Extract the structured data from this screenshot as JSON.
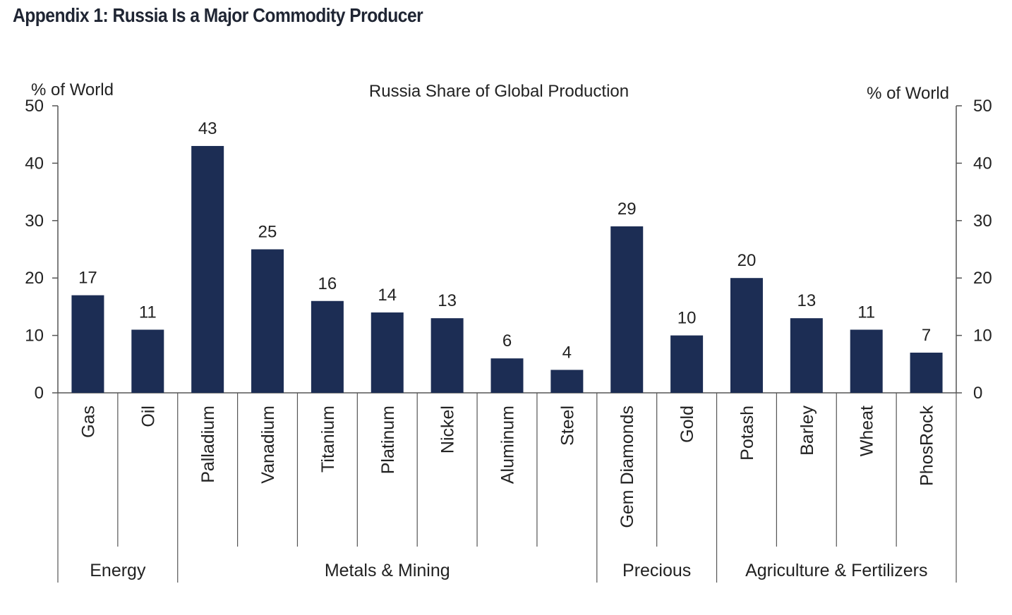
{
  "page": {
    "title": "Appendix 1: Russia Is a Major Commodity Producer"
  },
  "chart_data": {
    "type": "bar",
    "title": "Russia Share of Global Production",
    "ylabel_left": "% of World",
    "ylabel_right": "% of World",
    "ylim": [
      0,
      50
    ],
    "yticks": [
      0,
      10,
      20,
      30,
      40,
      50
    ],
    "categories": [
      "Gas",
      "Oil",
      "Palladium",
      "Vanadium",
      "Titanium",
      "Platinum",
      "Nickel",
      "Aluminum",
      "Steel",
      "Gem Diamonds",
      "Gold",
      "Potash",
      "Barley",
      "Wheat",
      "PhosRock"
    ],
    "values": [
      17,
      11,
      43,
      25,
      16,
      14,
      13,
      6,
      4,
      29,
      10,
      20,
      13,
      11,
      7
    ],
    "data_labels": [
      "17",
      "11",
      "43",
      "25",
      "16",
      "14",
      "13",
      "6",
      "4",
      "29",
      "10",
      "20",
      "13",
      "11",
      "7"
    ],
    "groups": [
      {
        "name": "Energy",
        "count": 2
      },
      {
        "name": "Metals & Mining",
        "count": 7
      },
      {
        "name": "Precious",
        "count": 2
      },
      {
        "name": "Agriculture & Fertilizers",
        "count": 4
      }
    ],
    "bar_color": "#1c2d54",
    "axis_color": "#555555",
    "grid": false,
    "legend": "none"
  }
}
